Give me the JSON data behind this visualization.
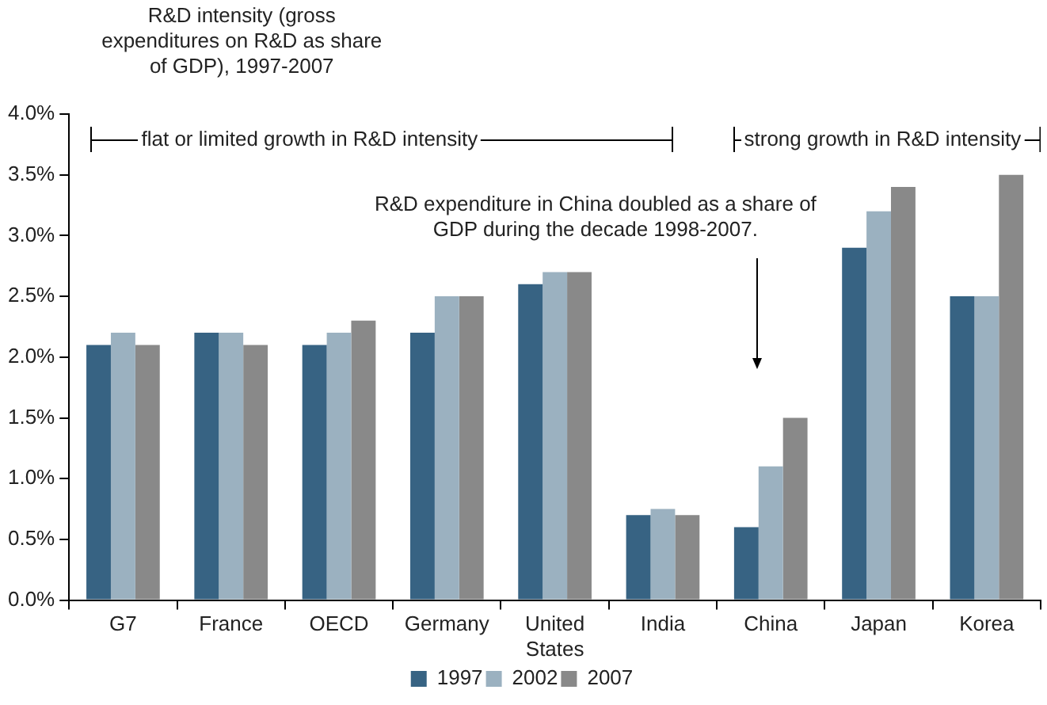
{
  "chart_data": {
    "type": "bar",
    "title": "R&D intensity (gross expenditures on R&D as share of GDP), 1997-2007",
    "categories": [
      "G7",
      "France",
      "OECD",
      "Germany",
      "United States",
      "India",
      "China",
      "Japan",
      "Korea"
    ],
    "series": [
      {
        "name": "1997",
        "color": "#376383",
        "values": [
          2.1,
          2.2,
          2.1,
          2.2,
          2.6,
          0.7,
          0.6,
          2.9,
          2.5
        ]
      },
      {
        "name": "2002",
        "color": "#9bb1c0",
        "values": [
          2.2,
          2.2,
          2.2,
          2.5,
          2.7,
          0.75,
          1.1,
          3.2,
          2.5
        ]
      },
      {
        "name": "2007",
        "color": "#898989",
        "values": [
          2.1,
          2.1,
          2.3,
          2.5,
          2.7,
          0.7,
          1.5,
          3.4,
          3.5
        ]
      }
    ],
    "ylim": [
      0,
      4
    ],
    "yticks": [
      {
        "value": 0,
        "label": "0.0%"
      },
      {
        "value": 0.5,
        "label": "0.5%"
      },
      {
        "value": 1,
        "label": "1.0%"
      },
      {
        "value": 1.5,
        "label": "1.5%"
      },
      {
        "value": 2,
        "label": "2.0%"
      },
      {
        "value": 2.5,
        "label": "2.5%"
      },
      {
        "value": 3,
        "label": "3.0%"
      },
      {
        "value": 3.5,
        "label": "3.5%"
      },
      {
        "value": 4,
        "label": "4.0%"
      }
    ],
    "grid": false,
    "legend": "bottom",
    "annotations": [
      "flat or limited growth in R&D intensity",
      "strong growth in R&D intensity",
      "R&D expenditure in China doubled as a share of GDP during the decade 1998-2007."
    ]
  }
}
